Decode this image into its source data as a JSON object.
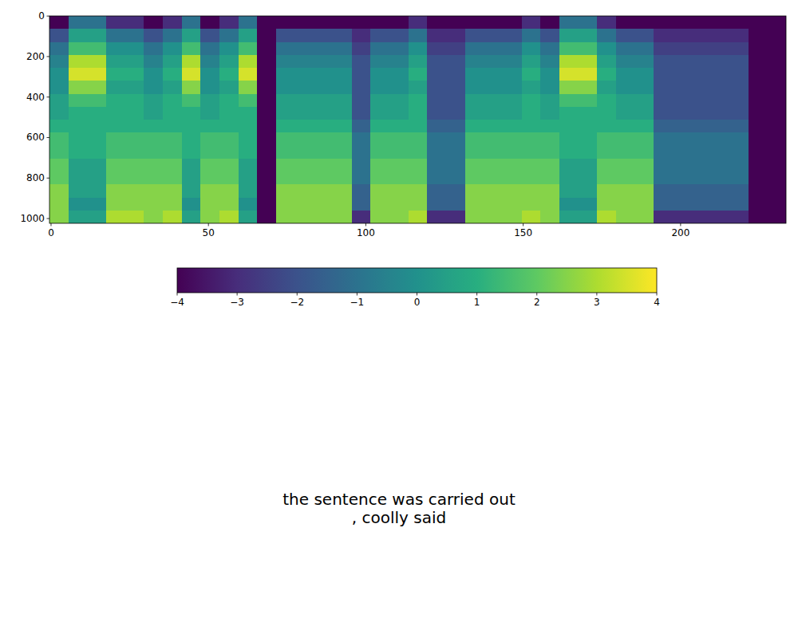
{
  "chart_data": {
    "type": "heatmap",
    "color": "viridis",
    "xlim": [
      -0.5,
      233.5
    ],
    "ylim": [
      1023.5,
      -0.5
    ],
    "xticks": [
      0,
      50,
      100,
      150,
      200
    ],
    "yticks": [
      0,
      200,
      400,
      600,
      800,
      1000
    ],
    "x_edges": [
      -0.5,
      5.5,
      11.5,
      17.5,
      23.5,
      29.5,
      35.5,
      41.5,
      47.5,
      53.5,
      59.5,
      65.5,
      71.5,
      77.5,
      83.5,
      89.5,
      95.5,
      101.5,
      107.5,
      113.5,
      119.5,
      125.5,
      131.5,
      137.5,
      143.5,
      149.5,
      155.5,
      161.5,
      167.5,
      173.5,
      179.5,
      185.5,
      191.5,
      197.5,
      203.5,
      209.5,
      215.5,
      221.5,
      227.5,
      233.5
    ],
    "y_edges": [
      -0.5,
      63.5,
      127.5,
      191.5,
      255.5,
      319.5,
      383.5,
      447.5,
      511.5,
      575.5,
      639.5,
      703.5,
      767.5,
      831.5,
      895.5,
      959.5,
      1023.5
    ],
    "cells": [
      [
        -4,
        -1,
        -1,
        -3,
        -3,
        -4,
        -3,
        -1,
        -4,
        -3,
        -1,
        -4,
        -4,
        -4,
        -4,
        -4,
        -4,
        -4,
        -4,
        -3,
        -4,
        -4,
        -4,
        -4,
        -4,
        -3,
        -4,
        -1,
        -1,
        -3,
        -4,
        -4,
        -4,
        -4,
        -4,
        -4,
        -4,
        -4,
        -4
      ],
      [
        -2,
        0.5,
        0.5,
        -1,
        -1,
        -2,
        -1,
        0.5,
        -2,
        -1,
        0.5,
        -4,
        -2,
        -2,
        -2,
        -2,
        -3,
        -2,
        -2,
        -1,
        -3,
        -3,
        -2,
        -2,
        -2,
        -1,
        -2,
        0.5,
        0.5,
        -1,
        -2,
        -2,
        -3,
        -3,
        -3,
        -3,
        -3,
        -4,
        -4
      ],
      [
        -1,
        1.5,
        1.5,
        0,
        0,
        -1,
        0,
        1.5,
        -1,
        0,
        1.5,
        -4,
        -1,
        -1,
        -1,
        -1,
        -2.5,
        -1,
        -1,
        0,
        -2.5,
        -2.5,
        -1,
        -1,
        -1,
        0,
        -1,
        1.5,
        1.5,
        0,
        -1,
        -1,
        -2.5,
        -2.5,
        -2.5,
        -2.5,
        -2.5,
        -4,
        -4
      ],
      [
        -0.5,
        3,
        3,
        0.5,
        0.5,
        -0.5,
        0.5,
        3,
        -0.5,
        0.5,
        3,
        -4,
        -0.5,
        -0.5,
        -0.5,
        -0.5,
        -2,
        -0.5,
        -0.5,
        0.5,
        -2,
        -2,
        -0.5,
        -0.5,
        -0.5,
        0.5,
        -0.5,
        3,
        3,
        0.5,
        -0.5,
        -0.5,
        -2,
        -2,
        -2,
        -2,
        -2,
        -4,
        -4
      ],
      [
        0,
        3.5,
        3.5,
        1,
        1,
        0,
        1,
        3.5,
        0,
        1,
        3.5,
        -4,
        0,
        0,
        0,
        0,
        -2,
        0,
        0,
        1,
        -2,
        -2,
        0,
        0,
        0,
        1,
        0,
        3.5,
        3.5,
        1,
        0,
        0,
        -2,
        -2,
        -2,
        -2,
        -2,
        -4,
        -4
      ],
      [
        0,
        2.5,
        2.5,
        0.5,
        0.5,
        0,
        0.5,
        2.5,
        0,
        0.5,
        2.5,
        -4,
        0,
        0,
        0,
        0,
        -2,
        0,
        0,
        0.5,
        -2,
        -2,
        0,
        0,
        0,
        0.5,
        0,
        2.5,
        2.5,
        0.5,
        0,
        0,
        -2,
        -2,
        -2,
        -2,
        -2,
        -4,
        -4
      ],
      [
        0.5,
        1.5,
        1.5,
        1,
        1,
        0.5,
        1,
        1.5,
        0.5,
        1,
        1.5,
        -4,
        0.5,
        0.5,
        0.5,
        0.5,
        -2,
        0.5,
        0.5,
        1,
        -2,
        -2,
        0.5,
        0.5,
        0.5,
        1,
        0.5,
        1.5,
        1.5,
        1,
        0.5,
        0.5,
        -2,
        -2,
        -2,
        -2,
        -2,
        -4,
        -4
      ],
      [
        0.5,
        1,
        1,
        1,
        1,
        0.5,
        1,
        1,
        0.5,
        1,
        1,
        -4,
        0.5,
        0.5,
        0.5,
        0.5,
        -2,
        0.5,
        0.5,
        1,
        -2,
        -2,
        0.5,
        0.5,
        0.5,
        1,
        0.5,
        1,
        1,
        1,
        0.5,
        0.5,
        -2,
        -2,
        -2,
        -2,
        -2,
        -4,
        -4
      ],
      [
        1,
        1,
        1,
        1,
        1,
        1,
        1,
        1,
        1,
        1,
        1,
        -4,
        1,
        1,
        1,
        1,
        -1.5,
        1,
        1,
        1,
        -1.5,
        -1.5,
        1,
        1,
        1,
        1,
        1,
        1,
        1,
        1,
        1,
        1,
        -1.5,
        -1.5,
        -1.5,
        -1.5,
        -1.5,
        -4,
        -4
      ],
      [
        1.5,
        1,
        1,
        1.5,
        1.5,
        1.5,
        1.5,
        1,
        1.5,
        1.5,
        1,
        -4,
        1.5,
        1.5,
        1.5,
        1.5,
        -1,
        1.5,
        1.5,
        1.5,
        -1,
        -1,
        1.5,
        1.5,
        1.5,
        1.5,
        1.5,
        1,
        1,
        1.5,
        1.5,
        1.5,
        -1,
        -1,
        -1,
        -1,
        -1,
        -4,
        -4
      ],
      [
        1.5,
        1,
        1,
        1.5,
        1.5,
        1.5,
        1.5,
        1,
        1.5,
        1.5,
        1,
        -4,
        1.5,
        1.5,
        1.5,
        1.5,
        -1,
        1.5,
        1.5,
        1.5,
        -1,
        -1,
        1.5,
        1.5,
        1.5,
        1.5,
        1.5,
        1,
        1,
        1.5,
        1.5,
        1.5,
        -1,
        -1,
        -1,
        -1,
        -1,
        -4,
        -4
      ],
      [
        2,
        0.5,
        0.5,
        2,
        2,
        2,
        2,
        0.5,
        2,
        2,
        0.5,
        -4,
        2,
        2,
        2,
        2,
        -1,
        2,
        2,
        2,
        -1,
        -1,
        2,
        2,
        2,
        2,
        2,
        0.5,
        0.5,
        2,
        2,
        2,
        -1,
        -1,
        -1,
        -1,
        -1,
        -4,
        -4
      ],
      [
        2,
        0.5,
        0.5,
        2,
        2,
        2,
        2,
        0.5,
        2,
        2,
        0.5,
        -4,
        2,
        2,
        2,
        2,
        -1,
        2,
        2,
        2,
        -1,
        -1,
        2,
        2,
        2,
        2,
        2,
        0.5,
        0.5,
        2,
        2,
        2,
        -1,
        -1,
        -1,
        -1,
        -1,
        -4,
        -4
      ],
      [
        2.5,
        0.5,
        0.5,
        2.5,
        2.5,
        2.5,
        2.5,
        0.5,
        2.5,
        2.5,
        0.5,
        -4,
        2.5,
        2.5,
        2.5,
        2.5,
        -1.5,
        2.5,
        2.5,
        2.5,
        -1.5,
        -1.5,
        2.5,
        2.5,
        2.5,
        2.5,
        2.5,
        0.5,
        0.5,
        2.5,
        2.5,
        2.5,
        -1.5,
        -1.5,
        -1.5,
        -1.5,
        -1.5,
        -4,
        -4
      ],
      [
        2.5,
        0,
        0,
        2.5,
        2.5,
        2.5,
        2.5,
        0,
        2.5,
        2.5,
        0,
        -4,
        2.5,
        2.5,
        2.5,
        2.5,
        -1.5,
        2.5,
        2.5,
        2.5,
        -1.5,
        -1.5,
        2.5,
        2.5,
        2.5,
        2.5,
        2.5,
        0,
        0,
        2.5,
        2.5,
        2.5,
        -1.5,
        -1.5,
        -1.5,
        -1.5,
        -1.5,
        -4,
        -4
      ],
      [
        2.5,
        0.5,
        0.5,
        3,
        3,
        2.5,
        3,
        0.5,
        2.5,
        3,
        0.5,
        -4,
        2.5,
        2.5,
        2.5,
        2.5,
        -3,
        2.5,
        2.5,
        3,
        -3,
        -3,
        2.5,
        2.5,
        2.5,
        3,
        2.5,
        0.5,
        0.5,
        3,
        2.5,
        2.5,
        -3,
        -3,
        -3,
        -3,
        -3,
        -4,
        -4
      ]
    ],
    "colorbar": {
      "range": [
        -4,
        4
      ],
      "ticks": [
        {
          "value": -4,
          "label": "−4"
        },
        {
          "value": -3,
          "label": "−3"
        },
        {
          "value": -2,
          "label": "−2"
        },
        {
          "value": -1,
          "label": "−1"
        },
        0,
        1,
        2,
        3,
        4
      ]
    },
    "annotations": [
      "the sentence was carried out",
      ", coolly said"
    ]
  }
}
